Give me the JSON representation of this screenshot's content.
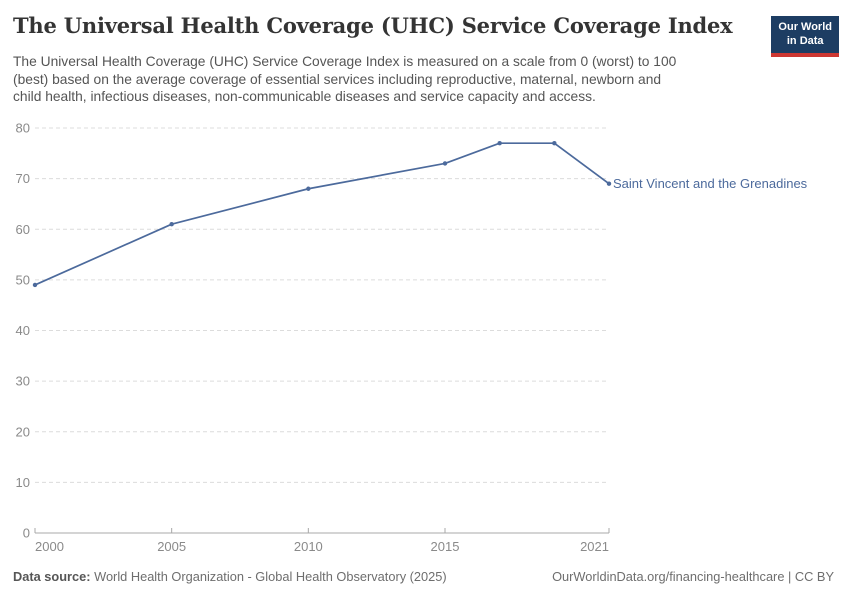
{
  "header": {
    "title": "The Universal Health Coverage (UHC) Service Coverage Index",
    "subtitle": "The Universal Health Coverage (UHC) Service Coverage Index is measured on a scale from 0 (worst) to 100 (best) based on the average coverage of essential services including reproductive, maternal, newborn and child health, infectious diseases, non-communicable diseases and service capacity and access.",
    "subtitle_lines": [
      "The Universal Health Coverage (UHC) Service Coverage Index is measured on a scale from 0 (worst) to 100",
      "(best) based on the average coverage of essential services including reproductive, maternal, newborn and",
      "child health, infectious diseases, non-communicable diseases and service capacity and access."
    ],
    "logo": {
      "line1": "Our World",
      "line2": "in Data"
    }
  },
  "chart_data": {
    "type": "line",
    "title": "The Universal Health Coverage (UHC) Service Coverage Index",
    "xlabel": "",
    "ylabel": "",
    "xlim": [
      2000,
      2021
    ],
    "ylim": [
      0,
      80
    ],
    "x_ticks": [
      2000,
      2005,
      2010,
      2015,
      2021
    ],
    "y_ticks": [
      0,
      10,
      20,
      30,
      40,
      50,
      60,
      70,
      80
    ],
    "grid": "horizontal dashed",
    "legend_position": "end-of-line label",
    "series": [
      {
        "name": "Saint Vincent and the Grenadines",
        "color": "#4c6a9c",
        "x": [
          2000,
          2005,
          2010,
          2015,
          2017,
          2019,
          2021
        ],
        "values": [
          49,
          61,
          68,
          73,
          77,
          77,
          69
        ]
      }
    ]
  },
  "footer": {
    "source_label": "Data source:",
    "source_text": "World Health Organization - Global Health Observatory (2025)",
    "attribution": "OurWorldinData.org/financing-healthcare | CC BY"
  },
  "colors": {
    "series_blue": "#4c6a9c",
    "brand_navy": "#1d3d63",
    "brand_red": "#cd3732",
    "grid_gray": "#dcdcdc",
    "axis_gray": "#a8a8a8",
    "tick_text_gray": "#8a8a8a"
  }
}
